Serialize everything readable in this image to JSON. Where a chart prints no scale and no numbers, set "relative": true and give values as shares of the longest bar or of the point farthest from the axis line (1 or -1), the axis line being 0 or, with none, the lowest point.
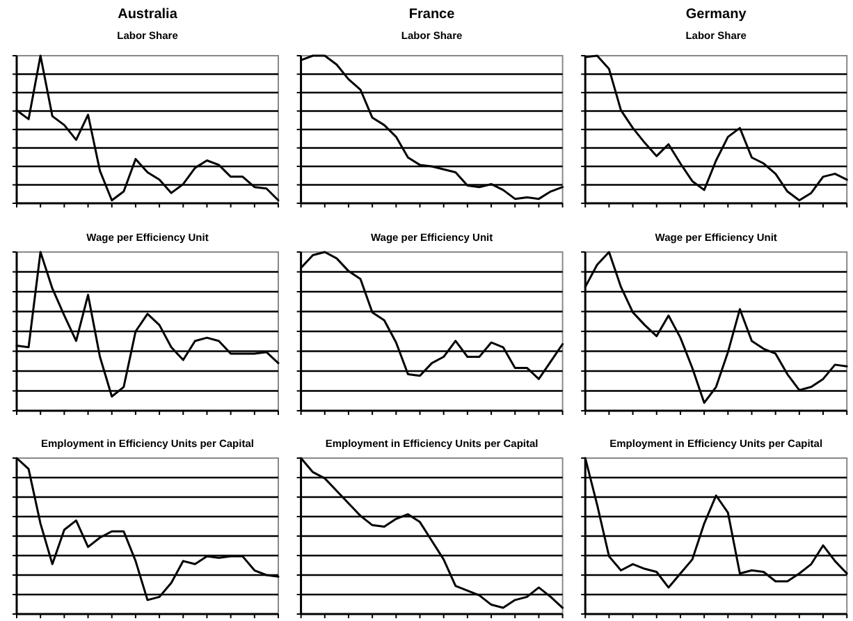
{
  "chart_data": [
    {
      "type": "line",
      "title": "Australia",
      "subtitle": "Labor Share",
      "relative": true,
      "grid": "y",
      "categories": [
        null,
        null,
        null,
        null,
        null,
        null,
        null,
        null,
        null,
        null,
        null,
        null,
        null,
        null,
        null,
        null,
        null,
        null,
        null,
        null,
        null,
        null,
        null
      ],
      "series": [
        {
          "color": "#000000",
          "values": [
            0.63,
            0.57,
            1,
            0.59,
            0.53,
            0.43,
            0.6,
            0.22,
            0.02,
            0.08,
            0.3,
            0.21,
            0.16,
            0.07,
            0.13,
            0.24,
            0.29,
            0.26,
            0.18,
            0.18,
            0.11,
            0.1,
            0.02
          ]
        }
      ]
    },
    {
      "type": "line",
      "title": "France",
      "subtitle": "Labor Share",
      "relative": true,
      "grid": "y",
      "categories": [
        null,
        null,
        null,
        null,
        null,
        null,
        null,
        null,
        null,
        null,
        null,
        null,
        null,
        null,
        null,
        null,
        null,
        null,
        null,
        null,
        null,
        null,
        null
      ],
      "series": [
        {
          "color": "#000000",
          "values": [
            0.97,
            1,
            1,
            0.94,
            0.84,
            0.77,
            0.58,
            0.53,
            0.45,
            0.31,
            0.26,
            0.25,
            0.23,
            0.21,
            0.12,
            0.11,
            0.13,
            0.09,
            0.03,
            0.04,
            0.03,
            0.08,
            0.11
          ]
        }
      ]
    },
    {
      "type": "line",
      "title": "Germany",
      "subtitle": "Labor Share",
      "relative": true,
      "grid": "y",
      "categories": [
        null,
        null,
        null,
        null,
        null,
        null,
        null,
        null,
        null,
        null,
        null,
        null,
        null,
        null,
        null,
        null,
        null,
        null,
        null,
        null,
        null,
        null,
        null
      ],
      "series": [
        {
          "color": "#000000",
          "values": [
            0.99,
            1,
            0.91,
            0.63,
            0.51,
            0.41,
            0.32,
            0.4,
            0.27,
            0.15,
            0.09,
            0.29,
            0.45,
            0.51,
            0.31,
            0.27,
            0.2,
            0.08,
            0.02,
            0.07,
            0.18,
            0.2,
            0.16
          ]
        }
      ]
    },
    {
      "type": "line",
      "title": "Wage per Efficiency Unit",
      "relative": true,
      "grid": "y",
      "categories": [
        null,
        null,
        null,
        null,
        null,
        null,
        null,
        null,
        null,
        null,
        null,
        null,
        null,
        null,
        null,
        null,
        null,
        null,
        null,
        null,
        null,
        null,
        null
      ],
      "series": [
        {
          "color": "#000000",
          "values": [
            0.41,
            0.4,
            1,
            0.77,
            0.6,
            0.44,
            0.73,
            0.34,
            0.09,
            0.15,
            0.5,
            0.61,
            0.54,
            0.4,
            0.32,
            0.44,
            0.46,
            0.44,
            0.36,
            0.36,
            0.36,
            0.37,
            0.3
          ]
        }
      ]
    },
    {
      "type": "line",
      "title": "Wage per Efficiency Unit",
      "relative": true,
      "grid": "y",
      "categories": [
        null,
        null,
        null,
        null,
        null,
        null,
        null,
        null,
        null,
        null,
        null,
        null,
        null,
        null,
        null,
        null,
        null,
        null,
        null,
        null,
        null,
        null,
        null
      ],
      "series": [
        {
          "color": "#000000",
          "values": [
            0.9,
            0.98,
            1,
            0.96,
            0.88,
            0.83,
            0.62,
            0.57,
            0.43,
            0.23,
            0.22,
            0.3,
            0.34,
            0.44,
            0.34,
            0.34,
            0.43,
            0.4,
            0.27,
            0.27,
            0.2,
            0.31,
            0.42
          ]
        }
      ]
    },
    {
      "type": "line",
      "title": "Wage per Efficiency Unit",
      "relative": true,
      "grid": "y",
      "categories": [
        null,
        null,
        null,
        null,
        null,
        null,
        null,
        null,
        null,
        null,
        null,
        null,
        null,
        null,
        null,
        null,
        null,
        null,
        null,
        null,
        null,
        null,
        null
      ],
      "series": [
        {
          "color": "#000000",
          "values": [
            0.78,
            0.92,
            1,
            0.78,
            0.62,
            0.54,
            0.47,
            0.6,
            0.46,
            0.27,
            0.05,
            0.15,
            0.37,
            0.64,
            0.44,
            0.39,
            0.36,
            0.23,
            0.13,
            0.15,
            0.2,
            0.29,
            0.28
          ]
        }
      ]
    },
    {
      "type": "line",
      "title": "Employment in Efficiency Units per Capital",
      "relative": true,
      "grid": "y",
      "categories": [
        null,
        null,
        null,
        null,
        null,
        null,
        null,
        null,
        null,
        null,
        null,
        null,
        null,
        null,
        null,
        null,
        null,
        null,
        null,
        null,
        null,
        null,
        null
      ],
      "series": [
        {
          "color": "#000000",
          "values": [
            1,
            0.93,
            0.58,
            0.32,
            0.54,
            0.6,
            0.43,
            0.49,
            0.53,
            0.53,
            0.34,
            0.09,
            0.11,
            0.2,
            0.34,
            0.32,
            0.37,
            0.36,
            0.37,
            0.37,
            0.28,
            0.25,
            0.24
          ]
        }
      ]
    },
    {
      "type": "line",
      "title": "Employment in Efficiency Units per Capital",
      "relative": true,
      "grid": "y",
      "categories": [
        null,
        null,
        null,
        null,
        null,
        null,
        null,
        null,
        null,
        null,
        null,
        null,
        null,
        null,
        null,
        null,
        null,
        null,
        null,
        null,
        null,
        null,
        null
      ],
      "series": [
        {
          "color": "#000000",
          "values": [
            1,
            0.91,
            0.87,
            0.79,
            0.71,
            0.63,
            0.57,
            0.56,
            0.61,
            0.64,
            0.59,
            0.47,
            0.35,
            0.18,
            0.15,
            0.12,
            0.06,
            0.04,
            0.09,
            0.11,
            0.17,
            0.11,
            0.04
          ]
        }
      ]
    },
    {
      "type": "line",
      "title": "Employment in Efficiency Units per Capital",
      "relative": true,
      "grid": "y",
      "categories": [
        null,
        null,
        null,
        null,
        null,
        null,
        null,
        null,
        null,
        null,
        null,
        null,
        null,
        null,
        null,
        null,
        null,
        null,
        null,
        null,
        null,
        null,
        null
      ],
      "series": [
        {
          "color": "#000000",
          "values": [
            1,
            0.7,
            0.37,
            0.28,
            0.32,
            0.29,
            0.27,
            0.17,
            0.26,
            0.35,
            0.58,
            0.76,
            0.65,
            0.26,
            0.28,
            0.27,
            0.21,
            0.21,
            0.26,
            0.32,
            0.44,
            0.34,
            0.26
          ]
        }
      ]
    }
  ]
}
